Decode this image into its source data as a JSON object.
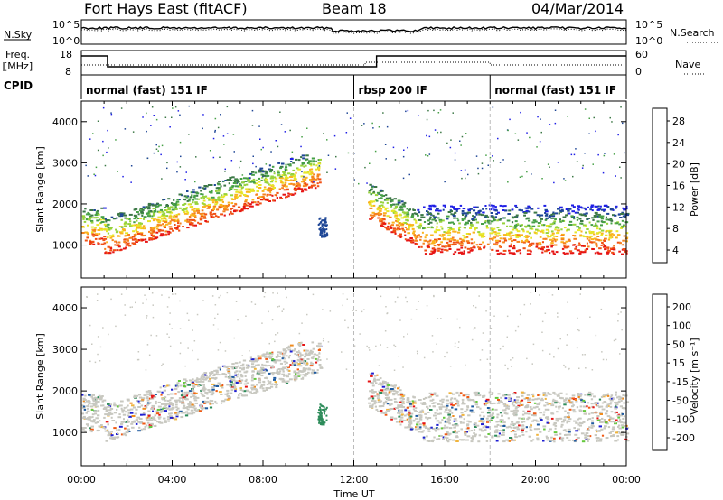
{
  "header": {
    "station": "Fort Hays East (fitACF)",
    "beam": "Beam 18",
    "date": "04/Mar/2014"
  },
  "top_panels": {
    "nsky_label": "N.Sky",
    "nsky_ticks": [
      "10^5",
      "10^0"
    ],
    "nsearch_label": "N.Search",
    "nsearch_ticks": [
      "10^5",
      "10^0"
    ],
    "freq_label_line1": "Freq.",
    "freq_label_line2": "[MHz]",
    "freq_ticks": [
      "18",
      "8"
    ],
    "nave_label": "Nave",
    "nave_ticks": [
      "60",
      "0"
    ],
    "cpid_label": "CPID"
  },
  "cpid_segments": [
    {
      "name": "normal (fast) 151 IF",
      "start_h": 0,
      "end_h": 12
    },
    {
      "name": "rbsp 200 IF",
      "start_h": 12,
      "end_h": 18
    },
    {
      "name": "normal (fast) 151 IF",
      "start_h": 18,
      "end_h": 24
    }
  ],
  "chart_data": [
    {
      "type": "heatmap",
      "name": "Power",
      "ylabel": "Slant Range [km]",
      "ylim": [
        200,
        4500
      ],
      "yticks": [
        1000,
        2000,
        3000,
        4000
      ],
      "x_range_hours": [
        0,
        24
      ],
      "colorbar_label": "Power [dB]",
      "colorbar_ticks": [
        "4",
        "8",
        "12",
        "16",
        "20",
        "24",
        "28"
      ],
      "colorbar_colors": [
        "#1e1ee6",
        "#1e4696",
        "#3c7846",
        "#46a046",
        "#96d23c",
        "#e6e628",
        "#fab41e",
        "#f5821e",
        "#f05014",
        "#e61414"
      ]
    },
    {
      "type": "heatmap",
      "name": "Velocity",
      "ylabel": "Slant Range [km]",
      "ylim": [
        200,
        4500
      ],
      "yticks": [
        1000,
        2000,
        3000,
        4000
      ],
      "x_range_hours": [
        0,
        24
      ],
      "colorbar_label": "Velocity [m s⁻¹]",
      "colorbar_ticks": [
        "200",
        "100",
        "50",
        "15",
        "-15",
        "-50",
        "-100",
        "-200"
      ],
      "colorbar_colors": [
        "#1e1ed2",
        "#1e5aa0",
        "#2d8c5a",
        "#64c83c",
        "#c8c8c0",
        "#f0b43c",
        "#f08c1e",
        "#f05a14",
        "#e61414"
      ]
    }
  ],
  "xaxis": {
    "ticks": [
      "00:00",
      "04:00",
      "08:00",
      "12:00",
      "16:00",
      "20:00",
      "00:00"
    ],
    "label": "Time UT"
  }
}
